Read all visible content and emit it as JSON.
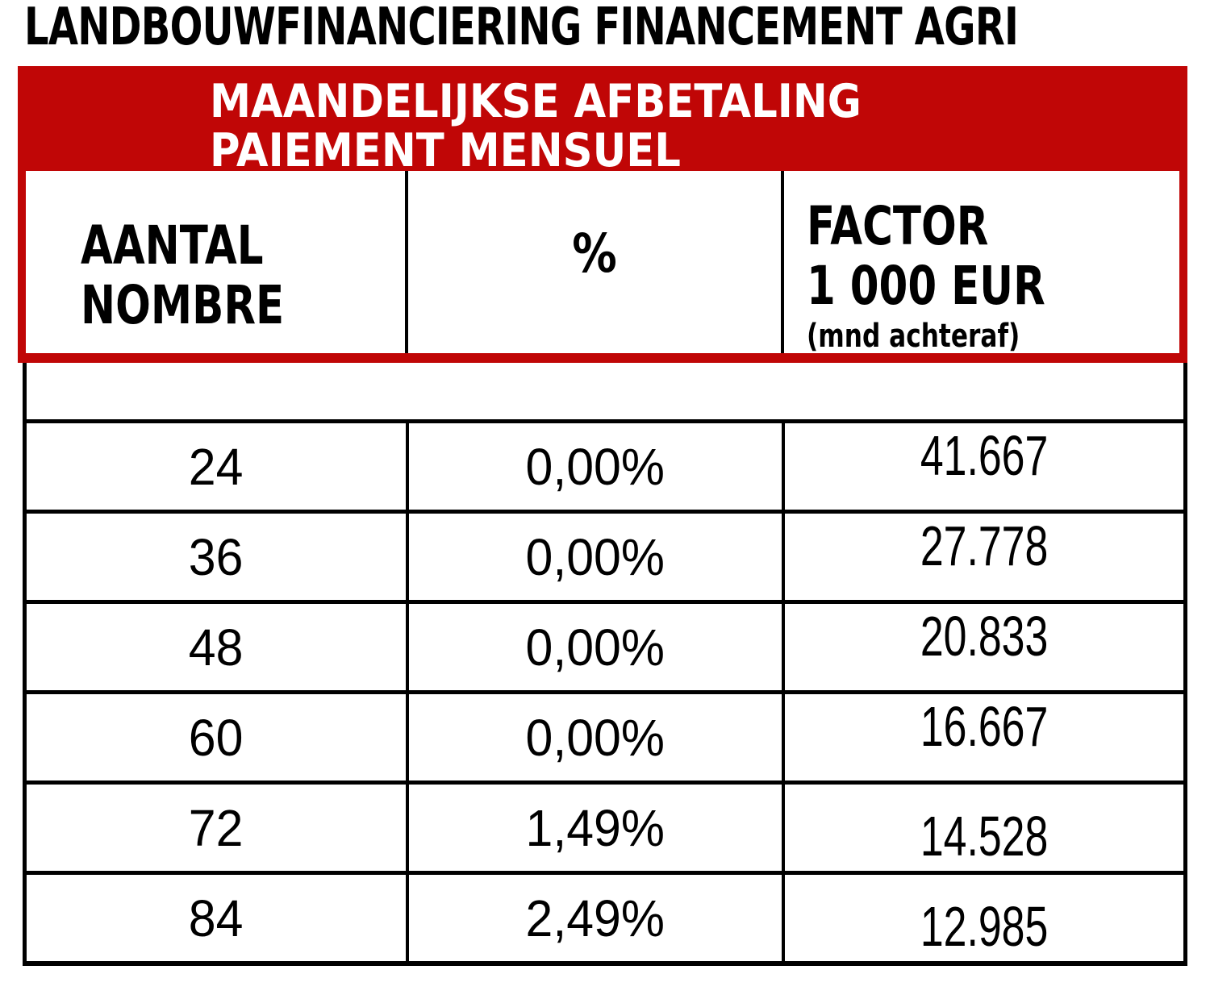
{
  "page": {
    "title": "LANDBOUWFINANCIERING FINANCEMENT AGRI"
  },
  "colors": {
    "accent_red": "#C00606",
    "border_black": "#000000",
    "banner_text": "#FFFFFF",
    "body_text": "#000000",
    "background": "#FFFFFF"
  },
  "table": {
    "banner": {
      "line1": "MAANDELIJKSE AFBETALING",
      "line2": "PAIEMENT MENSUEL"
    },
    "columns": [
      {
        "id": "aantal",
        "label_line1": "AANTAL",
        "label_line2": "NOMBRE"
      },
      {
        "id": "percent",
        "label": "%"
      },
      {
        "id": "factor",
        "label_line1": "FACTOR",
        "label_line2": "1 000 EUR",
        "label_line3": "(mnd achteraf)"
      }
    ],
    "rows": [
      {
        "aantal": "24",
        "percent": "0,00%",
        "factor": "41.667"
      },
      {
        "aantal": "36",
        "percent": "0,00%",
        "factor": "27.778"
      },
      {
        "aantal": "48",
        "percent": "0,00%",
        "factor": "20.833"
      },
      {
        "aantal": "60",
        "percent": "0,00%",
        "factor": "16.667"
      },
      {
        "aantal": "72",
        "percent": "1,49%",
        "factor": "14.528"
      },
      {
        "aantal": "84",
        "percent": "2,49%",
        "factor": "12.985"
      }
    ]
  }
}
